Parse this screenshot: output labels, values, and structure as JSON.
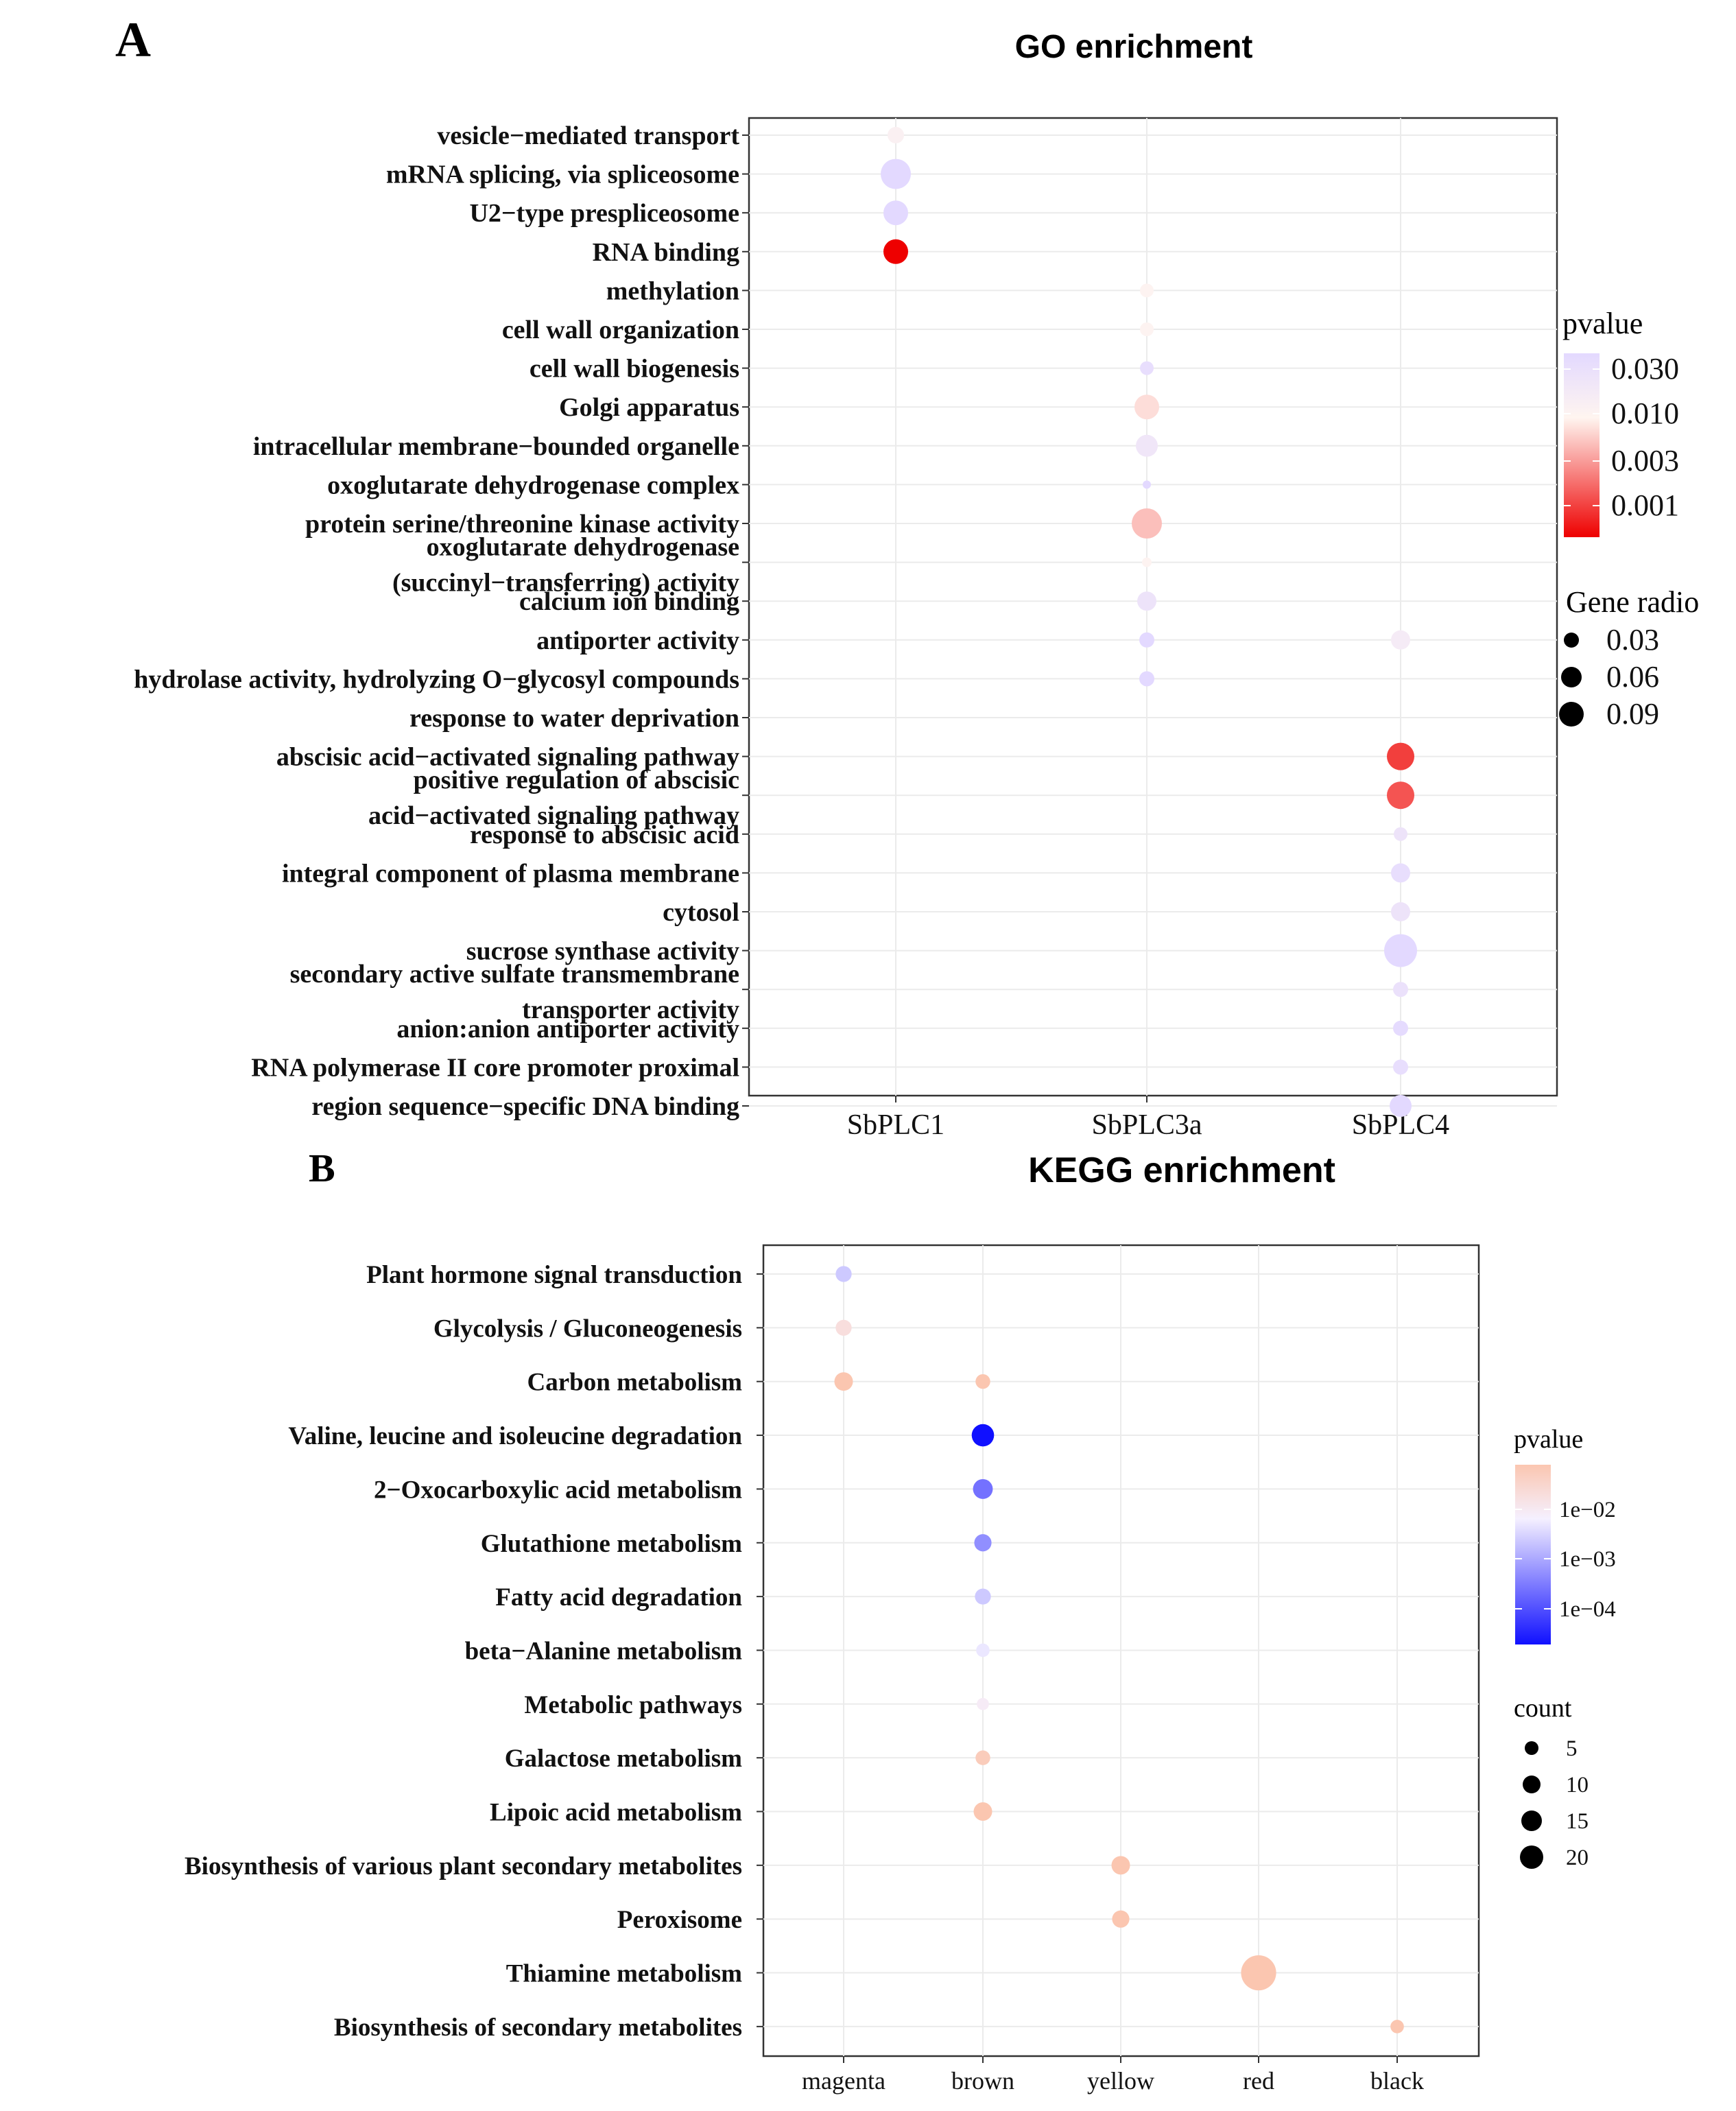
{
  "panels": {
    "a": {
      "letter": "A"
    },
    "b": {
      "letter": "B"
    }
  },
  "chart_data": [
    {
      "type": "scatter",
      "title": "GO enrichment",
      "x_categories": [
        "SbPLC1",
        "SbPLC3a",
        "SbPLC4"
      ],
      "y_categories": [
        [
          "vesicle−mediated transport"
        ],
        [
          "mRNA splicing, via spliceosome"
        ],
        [
          "U2−type prespliceosome"
        ],
        [
          "RNA binding"
        ],
        [
          "methylation"
        ],
        [
          "cell wall organization"
        ],
        [
          "cell wall biogenesis"
        ],
        [
          "Golgi apparatus"
        ],
        [
          "intracellular membrane−bounded organelle"
        ],
        [
          "oxoglutarate dehydrogenase complex"
        ],
        [
          "protein serine/threonine kinase activity"
        ],
        [
          "oxoglutarate dehydrogenase",
          "(succinyl−transferring) activity"
        ],
        [
          "calcium ion binding"
        ],
        [
          "antiporter activity"
        ],
        [
          "hydrolase activity, hydrolyzing O−glycosyl compounds"
        ],
        [
          "response to water deprivation"
        ],
        [
          "abscisic acid−activated signaling pathway"
        ],
        [
          "positive regulation of abscisic",
          "acid−activated signaling pathway"
        ],
        [
          "response to abscisic acid"
        ],
        [
          "integral component of plasma membrane"
        ],
        [
          "cytosol"
        ],
        [
          "sucrose synthase activity"
        ],
        [
          "secondary active sulfate transmembrane",
          "transporter activity"
        ],
        [
          "anion:anion antiporter activity"
        ],
        [
          "RNA polymerase II core promoter proximal"
        ],
        [
          "region sequence−specific DNA binding"
        ]
      ],
      "points": [
        {
          "x": "SbPLC1",
          "y": 0,
          "ratio": 0.04,
          "pvalue": 0.012
        },
        {
          "x": "SbPLC1",
          "y": 1,
          "ratio": 0.09,
          "pvalue": 0.03
        },
        {
          "x": "SbPLC1",
          "y": 2,
          "ratio": 0.07,
          "pvalue": 0.03
        },
        {
          "x": "SbPLC1",
          "y": 3,
          "ratio": 0.07,
          "pvalue": 0.001
        },
        {
          "x": "SbPLC3a",
          "y": 4,
          "ratio": 0.03,
          "pvalue": 0.011
        },
        {
          "x": "SbPLC3a",
          "y": 5,
          "ratio": 0.03,
          "pvalue": 0.011
        },
        {
          "x": "SbPLC3a",
          "y": 6,
          "ratio": 0.03,
          "pvalue": 0.025
        },
        {
          "x": "SbPLC3a",
          "y": 7,
          "ratio": 0.07,
          "pvalue": 0.008
        },
        {
          "x": "SbPLC3a",
          "y": 8,
          "ratio": 0.06,
          "pvalue": 0.018
        },
        {
          "x": "SbPLC3a",
          "y": 9,
          "ratio": 0.01,
          "pvalue": 0.03
        },
        {
          "x": "SbPLC3a",
          "y": 10,
          "ratio": 0.09,
          "pvalue": 0.006
        },
        {
          "x": "SbPLC3a",
          "y": 11,
          "ratio": 0.015,
          "pvalue": 0.011
        },
        {
          "x": "SbPLC3a",
          "y": 12,
          "ratio": 0.05,
          "pvalue": 0.02
        },
        {
          "x": "SbPLC3a",
          "y": 13,
          "ratio": 0.035,
          "pvalue": 0.03
        },
        {
          "x": "SbPLC3a",
          "y": 14,
          "ratio": 0.035,
          "pvalue": 0.03
        },
        {
          "x": "SbPLC4",
          "y": 13,
          "ratio": 0.05,
          "pvalue": 0.015
        },
        {
          "x": "SbPLC4",
          "y": 16,
          "ratio": 0.08,
          "pvalue": 0.0018
        },
        {
          "x": "SbPLC4",
          "y": 17,
          "ratio": 0.08,
          "pvalue": 0.0022
        },
        {
          "x": "SbPLC4",
          "y": 18,
          "ratio": 0.03,
          "pvalue": 0.02
        },
        {
          "x": "SbPLC4",
          "y": 19,
          "ratio": 0.05,
          "pvalue": 0.025
        },
        {
          "x": "SbPLC4",
          "y": 20,
          "ratio": 0.05,
          "pvalue": 0.02
        },
        {
          "x": "SbPLC4",
          "y": 21,
          "ratio": 0.1,
          "pvalue": 0.03
        },
        {
          "x": "SbPLC4",
          "y": 22,
          "ratio": 0.035,
          "pvalue": 0.022
        },
        {
          "x": "SbPLC4",
          "y": 23,
          "ratio": 0.035,
          "pvalue": 0.028
        },
        {
          "x": "SbPLC4",
          "y": 24,
          "ratio": 0.035,
          "pvalue": 0.025
        },
        {
          "x": "SbPLC4",
          "y": 25,
          "ratio": 0.06,
          "pvalue": 0.03
        }
      ],
      "legend": {
        "color_title": "pvalue",
        "color_ticks": [
          "0.030",
          "0.010",
          "0.003",
          "0.001"
        ],
        "size_title": "Gene radio",
        "size_ticks": [
          "0.03",
          "0.06",
          "0.09"
        ],
        "position": "right"
      },
      "color_scale": {
        "high_pvalue_color": "#e3d9ff",
        "mid_color": "#fff5f0",
        "low_pvalue_color": "#ee0000"
      },
      "grid": true
    },
    {
      "type": "scatter",
      "title": "KEGG enrichment",
      "x_categories": [
        "magenta",
        "brown",
        "yellow",
        "red",
        "black"
      ],
      "y_categories": [
        "Plant hormone signal transduction",
        "Glycolysis / Gluconeogenesis",
        "Carbon metabolism",
        "Valine, leucine and isoleucine degradation",
        "2−Oxocarboxylic acid metabolism",
        "Glutathione metabolism",
        "Fatty acid degradation",
        "beta−Alanine metabolism",
        "Metabolic pathways",
        "Galactose metabolism",
        "Lipoic acid metabolism",
        "Biosynthesis of various plant secondary metabolites",
        "Peroxisome",
        "Thiamine metabolism",
        "Biosynthesis of secondary metabolites"
      ],
      "points": [
        {
          "x": "magenta",
          "y": 0,
          "count": 5,
          "pvalue": 0.004
        },
        {
          "x": "magenta",
          "y": 1,
          "count": 5,
          "pvalue": 0.02
        },
        {
          "x": "magenta",
          "y": 2,
          "count": 7,
          "pvalue": 0.05
        },
        {
          "x": "brown",
          "y": 2,
          "count": 4,
          "pvalue": 0.05
        },
        {
          "x": "brown",
          "y": 3,
          "count": 10,
          "pvalue": 5e-05
        },
        {
          "x": "brown",
          "y": 4,
          "count": 8,
          "pvalue": 0.0005
        },
        {
          "x": "brown",
          "y": 5,
          "count": 6,
          "pvalue": 0.001
        },
        {
          "x": "brown",
          "y": 6,
          "count": 5,
          "pvalue": 0.004
        },
        {
          "x": "brown",
          "y": 7,
          "count": 3,
          "pvalue": 0.008
        },
        {
          "x": "brown",
          "y": 8,
          "count": 2,
          "pvalue": 0.012
        },
        {
          "x": "brown",
          "y": 9,
          "count": 4,
          "pvalue": 0.04
        },
        {
          "x": "brown",
          "y": 10,
          "count": 7,
          "pvalue": 0.05
        },
        {
          "x": "yellow",
          "y": 11,
          "count": 7,
          "pvalue": 0.05
        },
        {
          "x": "yellow",
          "y": 12,
          "count": 6,
          "pvalue": 0.05
        },
        {
          "x": "red",
          "y": 13,
          "count": 20,
          "pvalue": 0.05
        },
        {
          "x": "black",
          "y": 14,
          "count": 3,
          "pvalue": 0.05
        }
      ],
      "legend": {
        "color_title": "pvalue",
        "color_ticks": [
          "1e−02",
          "1e−03",
          "1e−04"
        ],
        "size_title": "count",
        "size_ticks": [
          "5",
          "10",
          "15",
          "20"
        ],
        "position": "right"
      },
      "color_scale": {
        "high_pvalue_color": "#fbc6b0",
        "mid_color": "#f5f0ff",
        "low_pvalue_color": "#1010ff"
      },
      "grid": true
    }
  ]
}
